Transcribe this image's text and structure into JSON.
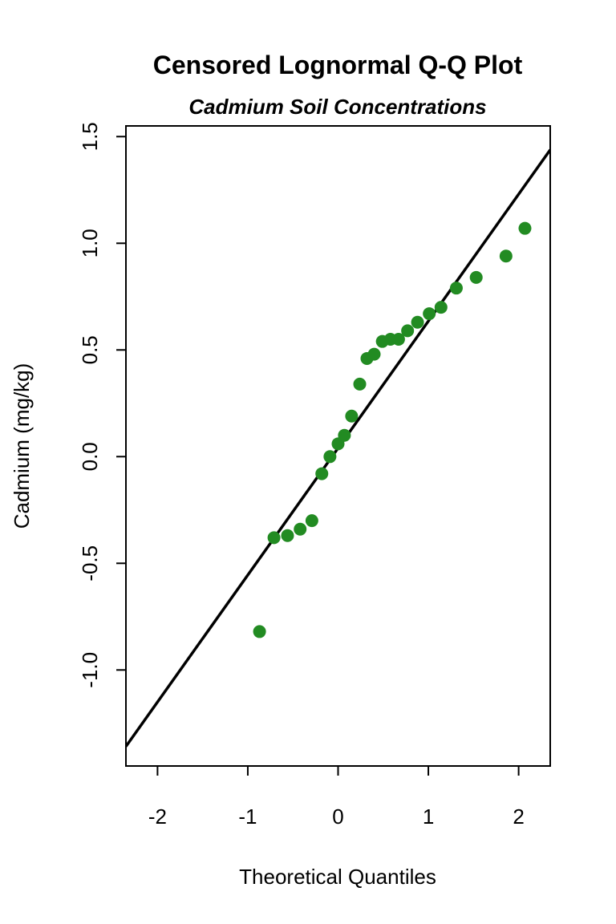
{
  "chart_data": {
    "type": "scatter",
    "title": "Censored Lognormal Q-Q Plot",
    "subtitle": "Cadmium Soil Concentrations",
    "xlabel": "Theoretical Quantiles",
    "ylabel": "Cadmium (mg/kg)",
    "xlim": [
      -2.35,
      2.35
    ],
    "ylim": [
      -1.45,
      1.55
    ],
    "x_ticks": [
      -2,
      -1,
      0,
      1,
      2
    ],
    "x_tick_labels": [
      "-2",
      "-1",
      "0",
      "1",
      "2"
    ],
    "y_ticks": [
      -1.0,
      -0.5,
      0.0,
      0.5,
      1.0,
      1.5
    ],
    "y_tick_labels": [
      "-1.0",
      "-0.5",
      "0.0",
      "0.5",
      "1.0",
      "1.5"
    ],
    "grid": false,
    "point_color": "#228B22",
    "line_color": "#000000",
    "series": [
      {
        "x": [
          -0.87,
          -0.71,
          -0.56,
          -0.42,
          -0.29,
          -0.18,
          -0.09,
          0.0,
          0.07,
          0.15,
          0.24,
          0.32,
          0.4,
          0.49,
          0.58,
          0.67,
          0.77,
          0.88,
          1.01,
          1.14,
          1.31,
          1.53,
          1.86,
          2.07
        ],
        "y": [
          -0.82,
          -0.38,
          -0.37,
          -0.34,
          -0.3,
          -0.08,
          0.0,
          0.06,
          0.1,
          0.19,
          0.34,
          0.46,
          0.48,
          0.54,
          0.55,
          0.55,
          0.59,
          0.63,
          0.67,
          0.7,
          0.79,
          0.84,
          0.94,
          1.07
        ]
      }
    ],
    "reference_line": {
      "intercept": 0.04,
      "slope": 0.595
    }
  }
}
